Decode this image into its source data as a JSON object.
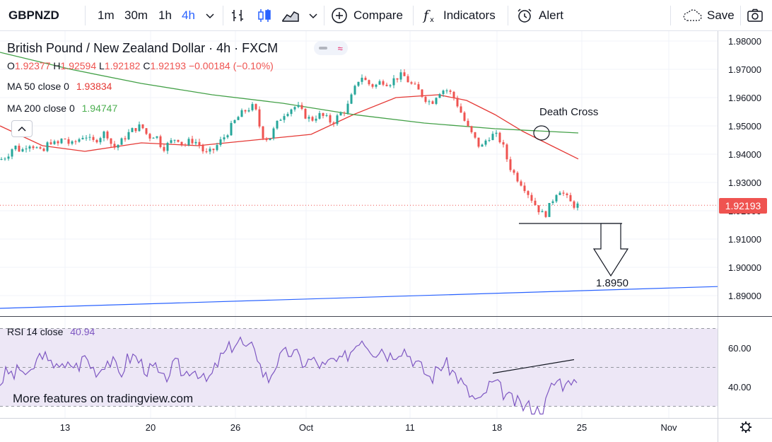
{
  "toolbar": {
    "symbol": "GBPNZD",
    "intervals": [
      "1m",
      "30m",
      "1h",
      "4h"
    ],
    "active_interval": "4h",
    "compare_label": "Compare",
    "indicators_label": "Indicators",
    "alert_label": "Alert",
    "save_label": "Save"
  },
  "legend": {
    "title": "British Pound / New Zealand Dollar · 4h · FXCM",
    "ohlc": {
      "o_label": "O",
      "o": "1.92377",
      "h_label": "H",
      "h": "1.92594",
      "l_label": "L",
      "l": "1.92182",
      "c_label": "C",
      "c": "1.92193",
      "change": "−0.00184 (−0.10%)"
    },
    "ma50": {
      "label": "MA 50 close 0",
      "value": "1.93834"
    },
    "ma200": {
      "label": "MA 200 close 0",
      "value": "1.94747"
    },
    "rsi": {
      "label": "RSI 14 close",
      "value": "40.94"
    }
  },
  "promo_text": "More features on tradingview.com",
  "colors": {
    "up": "#26a69a",
    "down": "#ef5350",
    "ma50": "#e53935",
    "ma200": "#43a047",
    "trend": "#2962ff",
    "rsi": "#7e57c2",
    "rsi_band": "#ede7f6"
  },
  "chart_data": [
    {
      "type": "candlestick",
      "title": "British Pound / New Zealand Dollar · 4h · FXCM",
      "x_ticks": [
        "13",
        "20",
        "26",
        "Oct",
        "11",
        "18",
        "25",
        "Nov"
      ],
      "y_ticks": [
        "1.98000",
        "1.97000",
        "1.96000",
        "1.95000",
        "1.94000",
        "1.93000",
        "1.92000",
        "1.91000",
        "1.90000",
        "1.89000"
      ],
      "ylim": [
        1.8865,
        1.981
      ],
      "last_price": "1.92193",
      "close_path": [
        [
          0,
          1.938
        ],
        [
          10,
          1.9395
        ],
        [
          20,
          1.943
        ],
        [
          30,
          1.941
        ],
        [
          40,
          1.944
        ],
        [
          50,
          1.9425
        ],
        [
          60,
          1.94
        ],
        [
          70,
          1.945
        ],
        [
          80,
          1.943
        ],
        [
          90,
          1.946
        ],
        [
          100,
          1.943
        ],
        [
          110,
          1.945
        ],
        [
          120,
          1.947
        ],
        [
          130,
          1.944
        ],
        [
          140,
          1.946
        ],
        [
          150,
          1.948
        ],
        [
          160,
          1.942
        ],
        [
          170,
          1.944
        ],
        [
          180,
          1.947
        ],
        [
          190,
          1.949
        ],
        [
          200,
          1.95
        ],
        [
          210,
          1.946
        ],
        [
          220,
          1.947
        ],
        [
          230,
          1.942
        ],
        [
          240,
          1.944
        ],
        [
          250,
          1.946
        ],
        [
          260,
          1.943
        ],
        [
          270,
          1.945
        ],
        [
          280,
          1.944
        ],
        [
          290,
          1.94
        ],
        [
          300,
          1.941
        ],
        [
          310,
          1.944
        ],
        [
          320,
          1.947
        ],
        [
          330,
          1.951
        ],
        [
          340,
          1.954
        ],
        [
          350,
          1.956
        ],
        [
          360,
          1.957
        ],
        [
          370,
          1.947
        ],
        [
          380,
          1.945
        ],
        [
          390,
          1.95
        ],
        [
          400,
          1.954
        ],
        [
          410,
          1.956
        ],
        [
          420,
          1.957
        ],
        [
          430,
          1.954
        ],
        [
          440,
          1.952
        ],
        [
          450,
          1.954
        ],
        [
          460,
          1.953
        ],
        [
          470,
          1.951
        ],
        [
          480,
          1.954
        ],
        [
          490,
          1.956
        ],
        [
          500,
          1.962
        ],
        [
          510,
          1.968
        ],
        [
          520,
          1.965
        ],
        [
          530,
          1.964
        ],
        [
          540,
          1.966
        ],
        [
          550,
          1.965
        ],
        [
          560,
          1.967
        ],
        [
          570,
          1.968
        ],
        [
          580,
          1.965
        ],
        [
          590,
          1.963
        ],
        [
          600,
          1.96
        ],
        [
          610,
          1.958
        ],
        [
          620,
          1.962
        ],
        [
          630,
          1.963
        ],
        [
          640,
          1.961
        ],
        [
          650,
          1.956
        ],
        [
          660,
          1.95
        ],
        [
          670,
          1.946
        ],
        [
          680,
          1.942
        ],
        [
          690,
          1.946
        ],
        [
          700,
          1.947
        ],
        [
          710,
          1.944
        ],
        [
          720,
          1.936
        ],
        [
          730,
          1.932
        ],
        [
          740,
          1.929
        ],
        [
          750,
          1.925
        ],
        [
          760,
          1.921
        ],
        [
          770,
          1.918
        ],
        [
          780,
          1.923
        ],
        [
          790,
          1.928
        ],
        [
          800,
          1.925
        ],
        [
          810,
          1.922
        ],
        [
          818,
          1.9219
        ]
      ],
      "series": [
        {
          "name": "MA 50 close 0",
          "points": [
            [
              0,
              1.95
            ],
            [
              60,
              1.943
            ],
            [
              120,
              1.941
            ],
            [
              200,
              1.944
            ],
            [
              280,
              1.943
            ],
            [
              360,
              1.945
            ],
            [
              440,
              1.947
            ],
            [
              500,
              1.954
            ],
            [
              560,
              1.96
            ],
            [
              620,
              1.961
            ],
            [
              660,
              1.959
            ],
            [
              700,
              1.954
            ],
            [
              740,
              1.948
            ],
            [
              780,
              1.943
            ],
            [
              818,
              1.9383
            ]
          ]
        },
        {
          "name": "MA 200 close 0",
          "points": [
            [
              0,
              1.976
            ],
            [
              100,
              1.97
            ],
            [
              200,
              1.965
            ],
            [
              300,
              1.961
            ],
            [
              400,
              1.958
            ],
            [
              500,
              1.954
            ],
            [
              600,
              1.951
            ],
            [
              700,
              1.949
            ],
            [
              818,
              1.9475
            ]
          ]
        }
      ],
      "trendline": [
        [
          0,
          1.8855
        ],
        [
          1015,
          1.8932
        ]
      ],
      "support_level": 1.9155,
      "target_price": "1.8950",
      "annotation": "Death Cross"
    },
    {
      "type": "line",
      "title": "RSI 14 close",
      "y_ticks": [
        "60.00",
        "40.00"
      ],
      "ylim": [
        24,
        76
      ],
      "band": [
        30,
        70
      ],
      "values": [
        [
          0,
          42
        ],
        [
          10,
          48
        ],
        [
          20,
          46
        ],
        [
          30,
          50
        ],
        [
          40,
          44
        ],
        [
          50,
          52
        ],
        [
          60,
          58
        ],
        [
          70,
          50
        ],
        [
          80,
          54
        ],
        [
          90,
          48
        ],
        [
          100,
          52
        ],
        [
          110,
          50
        ],
        [
          120,
          56
        ],
        [
          130,
          50
        ],
        [
          140,
          48
        ],
        [
          150,
          54
        ],
        [
          160,
          52
        ],
        [
          170,
          46
        ],
        [
          180,
          54
        ],
        [
          190,
          56
        ],
        [
          200,
          52
        ],
        [
          210,
          48
        ],
        [
          220,
          50
        ],
        [
          230,
          42
        ],
        [
          240,
          48
        ],
        [
          250,
          52
        ],
        [
          260,
          46
        ],
        [
          270,
          50
        ],
        [
          280,
          48
        ],
        [
          290,
          42
        ],
        [
          300,
          46
        ],
        [
          310,
          54
        ],
        [
          320,
          58
        ],
        [
          330,
          62
        ],
        [
          340,
          64
        ],
        [
          350,
          58
        ],
        [
          360,
          62
        ],
        [
          370,
          48
        ],
        [
          380,
          44
        ],
        [
          390,
          52
        ],
        [
          400,
          56
        ],
        [
          410,
          58
        ],
        [
          420,
          56
        ],
        [
          430,
          52
        ],
        [
          440,
          54
        ],
        [
          450,
          52
        ],
        [
          460,
          50
        ],
        [
          470,
          54
        ],
        [
          480,
          52
        ],
        [
          490,
          56
        ],
        [
          500,
          60
        ],
        [
          510,
          66
        ],
        [
          520,
          62
        ],
        [
          530,
          58
        ],
        [
          540,
          60
        ],
        [
          550,
          56
        ],
        [
          560,
          58
        ],
        [
          570,
          60
        ],
        [
          580,
          56
        ],
        [
          590,
          52
        ],
        [
          600,
          48
        ],
        [
          610,
          44
        ],
        [
          620,
          50
        ],
        [
          630,
          52
        ],
        [
          640,
          48
        ],
        [
          650,
          44
        ],
        [
          660,
          38
        ],
        [
          670,
          34
        ],
        [
          680,
          32
        ],
        [
          690,
          40
        ],
        [
          700,
          42
        ],
        [
          710,
          38
        ],
        [
          720,
          34
        ],
        [
          730,
          32
        ],
        [
          740,
          30
        ],
        [
          750,
          30
        ],
        [
          760,
          28
        ],
        [
          770,
          30
        ],
        [
          780,
          40
        ],
        [
          790,
          44
        ],
        [
          800,
          40
        ],
        [
          805,
          48
        ],
        [
          810,
          42
        ],
        [
          818,
          41
        ]
      ],
      "divergence_line": [
        [
          697,
          47
        ],
        [
          812,
          54
        ]
      ]
    }
  ]
}
